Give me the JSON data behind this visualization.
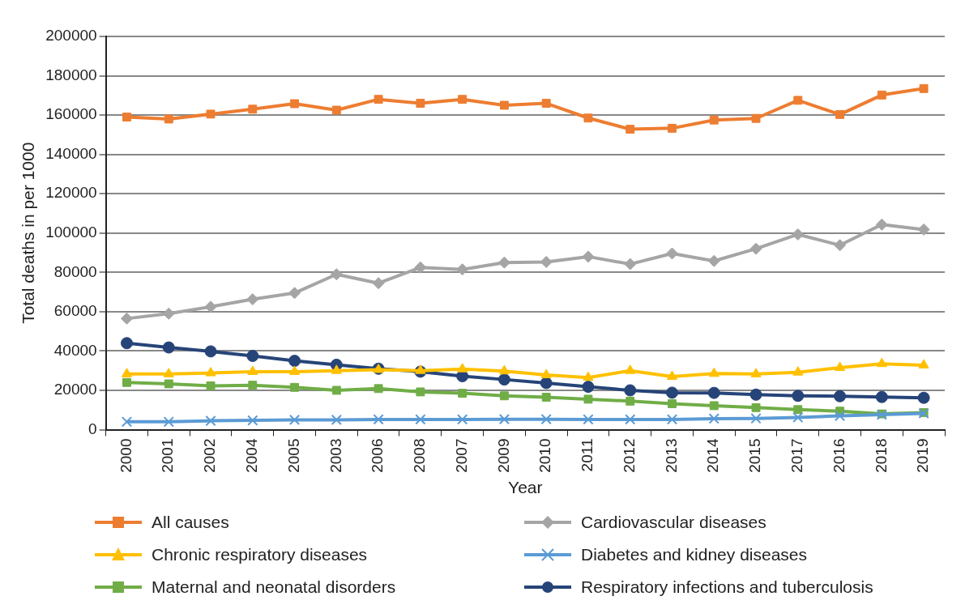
{
  "chart_data": {
    "type": "line",
    "xlabel": "Year",
    "ylabel": "Total deaths in per 1000",
    "categories": [
      "2000",
      "2001",
      "2002",
      "2004",
      "2005",
      "2003",
      "2006",
      "2008",
      "2007",
      "2009",
      "2010",
      "2011",
      "2012",
      "2013",
      "2014",
      "2015",
      "2017",
      "2016",
      "2018",
      "2019"
    ],
    "ylim": [
      0,
      200000
    ],
    "yticks": [
      0,
      20000,
      40000,
      60000,
      80000,
      100000,
      120000,
      140000,
      160000,
      180000,
      200000
    ],
    "grid": "y",
    "legend": "bottom",
    "line_style": "solid",
    "series": [
      {
        "name": "All causes",
        "color": "#ed7d31",
        "marker": "square",
        "values": [
          159000,
          158000,
          160500,
          163000,
          165800,
          162500,
          168000,
          166000,
          168000,
          165000,
          166000,
          158500,
          152800,
          153300,
          157500,
          158300,
          167500,
          160300,
          170200,
          173500
        ]
      },
      {
        "name": "Cardiovascular diseases",
        "color": "#a5a5a5",
        "marker": "diamond",
        "values": [
          56500,
          59000,
          62500,
          66300,
          69500,
          79000,
          74500,
          82500,
          81500,
          85000,
          85300,
          88000,
          84200,
          89600,
          85800,
          92000,
          99300,
          93800,
          104300,
          101800
        ]
      },
      {
        "name": "Chronic respiratory diseases",
        "color": "#ffc000",
        "marker": "triangle",
        "values": [
          28300,
          28300,
          28800,
          29500,
          29500,
          30000,
          30500,
          30000,
          30800,
          29800,
          27800,
          26500,
          30000,
          27000,
          28500,
          28300,
          29200,
          31500,
          33500,
          32800
        ]
      },
      {
        "name": "Diabetes and kidney diseases",
        "color": "#5b9bd5",
        "marker": "cross",
        "values": [
          4000,
          4000,
          4500,
          4700,
          5000,
          5000,
          5200,
          5200,
          5200,
          5300,
          5300,
          5200,
          5200,
          5200,
          5600,
          5700,
          6200,
          7000,
          7600,
          8300
        ]
      },
      {
        "name": "Maternal and neonatal disorders",
        "color": "#70ad47",
        "marker": "square",
        "values": [
          24000,
          23300,
          22300,
          22600,
          21500,
          20000,
          20900,
          19200,
          18500,
          17200,
          16500,
          15500,
          14500,
          13200,
          12200,
          11200,
          10200,
          9400,
          8000,
          8700
        ]
      },
      {
        "name": "Respiratory infections and tuberculosis",
        "color": "#264478",
        "marker": "circle",
        "values": [
          44000,
          41800,
          39800,
          37500,
          35000,
          33000,
          31000,
          29500,
          27200,
          25500,
          23700,
          21800,
          20000,
          18800,
          18700,
          17800,
          17200,
          17000,
          16600,
          16200
        ]
      }
    ]
  }
}
